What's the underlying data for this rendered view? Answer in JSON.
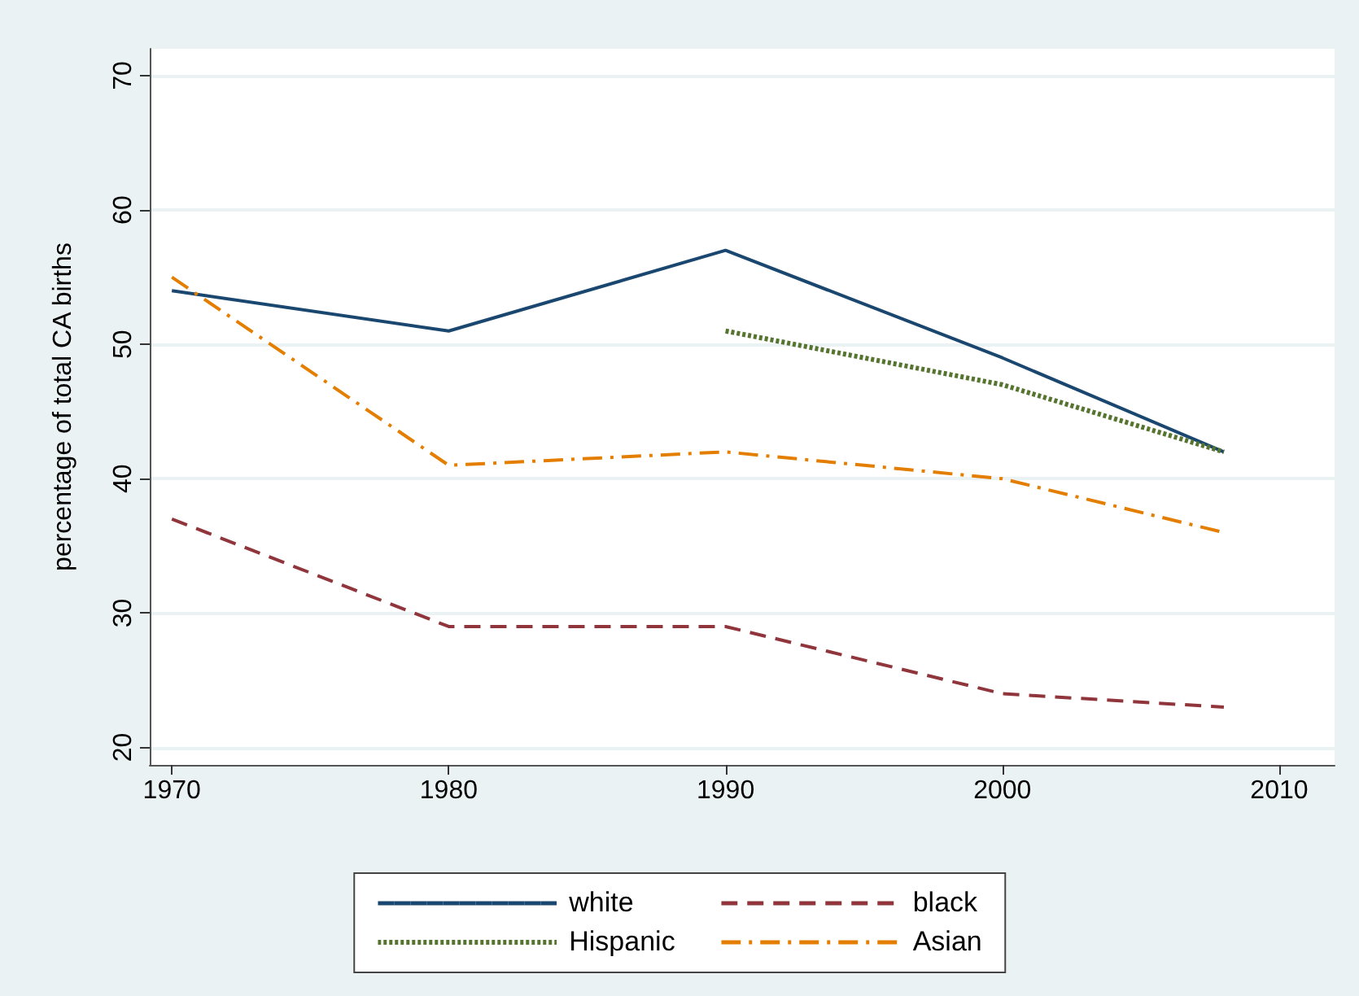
{
  "chart_data": {
    "type": "line",
    "ylabel": "percentage of total CA births",
    "x": [
      1970,
      1980,
      1990,
      2000,
      2008
    ],
    "series": [
      {
        "name": "white",
        "color": "#1a476f",
        "values": [
          54,
          51,
          57,
          49,
          42
        ],
        "line_style": "solid"
      },
      {
        "name": "black",
        "color": "#90353b",
        "values": [
          37,
          29,
          29,
          24,
          23
        ],
        "line_style": "dashed"
      },
      {
        "name": "Hispanic",
        "color": "#55752f",
        "values": [
          null,
          null,
          51,
          47,
          42
        ],
        "line_style": "dotted"
      },
      {
        "name": "Asian",
        "color": "#e37e00",
        "values": [
          55,
          41,
          42,
          40,
          36
        ],
        "line_style": "dashdot"
      }
    ],
    "xlim": [
      1969.2,
      2012
    ],
    "xticks": [
      1970,
      1980,
      1990,
      2000,
      2010
    ],
    "ylim": [
      18.7,
      72
    ],
    "yticks": [
      20,
      30,
      40,
      50,
      60,
      70
    ],
    "grid": "y",
    "legend": "bottom",
    "marker": "none"
  }
}
